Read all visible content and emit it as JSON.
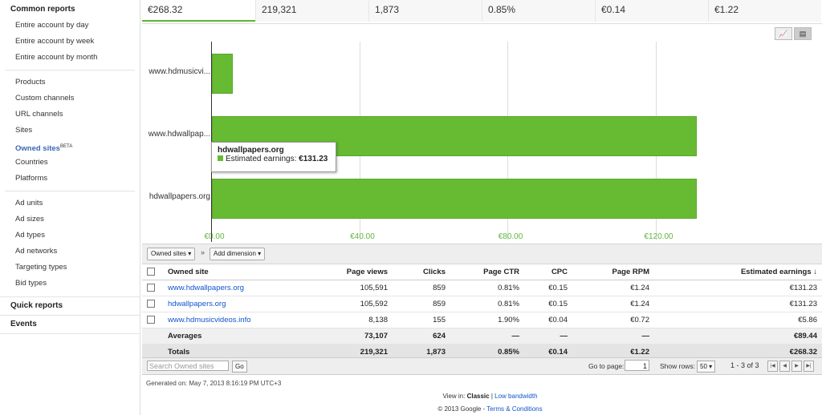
{
  "sidebar": {
    "common_reports": "Common reports",
    "group1": [
      "Entire account by day",
      "Entire account by week",
      "Entire account by month"
    ],
    "group2": [
      "Products",
      "Custom channels",
      "URL channels",
      "Sites"
    ],
    "owned_sites": "Owned sites",
    "owned_sites_badge": "BETA",
    "group2b": [
      "Countries",
      "Platforms"
    ],
    "group3": [
      "Ad units",
      "Ad sizes",
      "Ad types",
      "Ad networks",
      "Targeting types",
      "Bid types"
    ],
    "quick_reports": "Quick reports",
    "events": "Events"
  },
  "tabs": [
    "€268.32",
    "219,321",
    "1,873",
    "0.85%",
    "€0.14",
    "€1.22"
  ],
  "chart_data": {
    "type": "bar",
    "orientation": "horizontal",
    "categories": [
      "www.hdmusicvi...",
      "www.hdwallpap...",
      "hdwallpapers.org"
    ],
    "values": [
      5.86,
      131.23,
      131.23
    ],
    "xticks": [
      "€0.00",
      "€40.00",
      "€80.00",
      "€120.00"
    ],
    "xlim": [
      0,
      160
    ],
    "color": "#66bb33"
  },
  "tooltip": {
    "title": "hdwallpapers.org",
    "label": "Estimated earnings:",
    "value": "€131.23"
  },
  "toolbar": {
    "dimension": "Owned sites ▾",
    "sep": "»",
    "add_dimension": "Add dimension ▾"
  },
  "table": {
    "headers": [
      "Owned site",
      "Page views",
      "Clicks",
      "Page CTR",
      "CPC",
      "Page RPM",
      "Estimated earnings ↓"
    ],
    "rows": [
      [
        "www.hdwallpapers.org",
        "105,591",
        "859",
        "0.81%",
        "€0.15",
        "€1.24",
        "€131.23"
      ],
      [
        "hdwallpapers.org",
        "105,592",
        "859",
        "0.81%",
        "€0.15",
        "€1.24",
        "€131.23"
      ],
      [
        "www.hdmusicvideos.info",
        "8,138",
        "155",
        "1.90%",
        "€0.04",
        "€0.72",
        "€5.86"
      ]
    ],
    "averages": [
      "Averages",
      "73,107",
      "624",
      "—",
      "—",
      "—",
      "€89.44"
    ],
    "totals": [
      "Totals",
      "219,321",
      "1,873",
      "0.85%",
      "€0.14",
      "€1.22",
      "€268.32"
    ]
  },
  "bottom": {
    "search_placeholder": "Search Owned sites",
    "go": "Go",
    "goto_label": "Go to page:",
    "page_value": "1",
    "show_rows_label": "Show rows:",
    "rows_value": "50 ▾",
    "range": "1 - 3 of 3"
  },
  "footer": {
    "generated": "Generated on: May 7, 2013 8:16:19 PM UTC+3",
    "view_in": "View in:",
    "classic": "Classic",
    "sep": "|",
    "low_bandwidth": "Low bandwidth",
    "copyright": "© 2013 Google -",
    "terms": "Terms & Conditions"
  }
}
